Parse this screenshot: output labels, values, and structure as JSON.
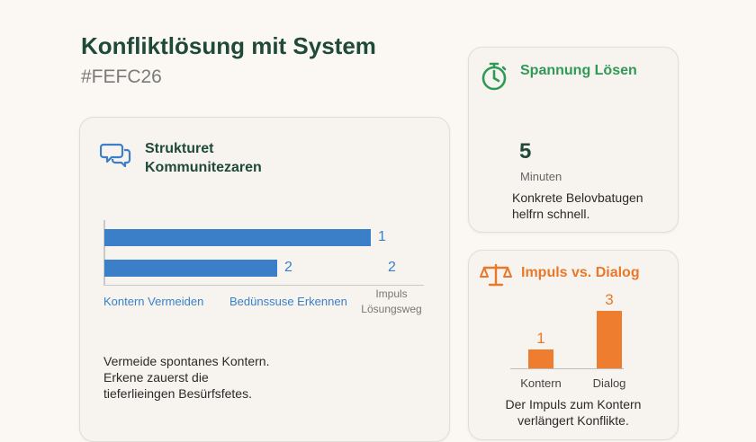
{
  "header": {
    "title": "Konfliktlösung mit System",
    "subtitle": "#FEFC26"
  },
  "main_card": {
    "heading_line1": "Strukturet",
    "heading_line2": "Kommunitezaren",
    "icon": "chat-bubbles-icon",
    "body_lines": [
      "Vermeide spontanes Kontern.",
      "Erkene zauerst die",
      "tieferlieingen Besürfsfetes."
    ]
  },
  "timer_card": {
    "heading": "Spannung Lösen",
    "icon": "stopwatch-icon",
    "value": "5",
    "unit": "Minuten",
    "body_lines": [
      "Konkrete Belovbatugen",
      "helfrn schnell."
    ]
  },
  "impulse_card": {
    "heading": "Impuls vs. Dialog",
    "icon": "scales-icon",
    "body_lines": [
      "Der Impuls zum Kontern",
      "verlängert Konflikte."
    ]
  },
  "chart_data": [
    {
      "type": "bar",
      "orientation": "horizontal",
      "bars": [
        {
          "label": "1",
          "value": 1.0
        },
        {
          "label": "2",
          "value": 0.65
        }
      ],
      "extra_value_label": "2",
      "x_labels": [
        "Kontern Vermeiden",
        "Bedünssuse Erkennen"
      ],
      "end_label_line1": "Impuls",
      "end_label_line2": "Lösungsweg"
    },
    {
      "type": "bar",
      "categories": [
        "Kontern",
        "Dialog"
      ],
      "values": [
        1,
        3
      ],
      "value_labels": [
        "1",
        "3"
      ],
      "ylim": [
        0,
        3
      ]
    }
  ],
  "colors": {
    "blue": "#3a7fc8",
    "green": "#2f9a55",
    "orange": "#ef7d2f",
    "title": "#1f4a3a"
  }
}
